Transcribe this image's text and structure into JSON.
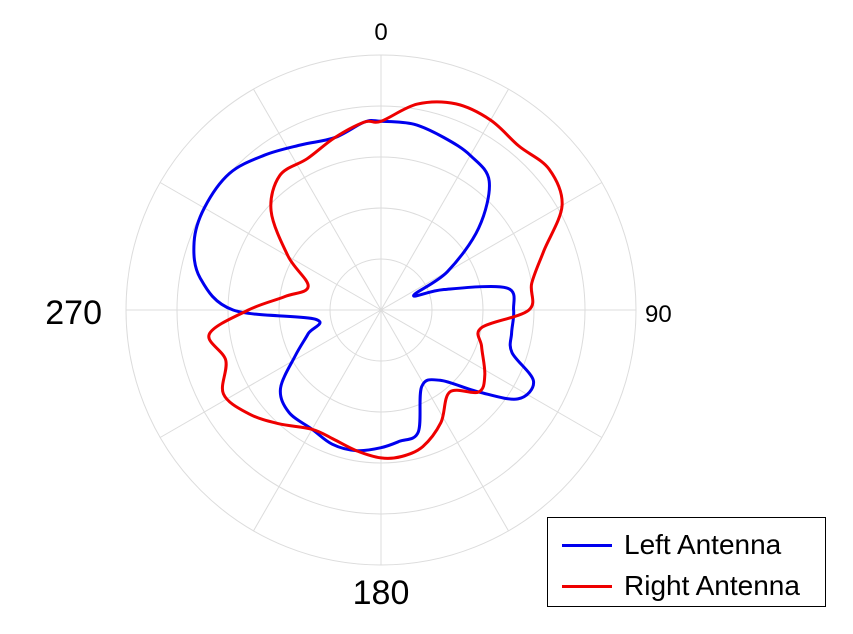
{
  "chart_data": {
    "type": "polar-line",
    "angle_labels": [
      {
        "angle": 0,
        "text": "0"
      },
      {
        "angle": 90,
        "text": "90"
      },
      {
        "angle": 180,
        "text": "180"
      },
      {
        "angle": 270,
        "text": "270"
      }
    ],
    "rings": 5,
    "radial_gridline_step_deg": 30,
    "rmax": 5,
    "grid": true,
    "grid_color": "#dcdcdc",
    "legend_position": "bottom-right",
    "series": [
      {
        "name": "Left Antenna",
        "color": "#0000ee",
        "points": [
          [
            0,
            3.7
          ],
          [
            10,
            3.7
          ],
          [
            20,
            3.6
          ],
          [
            30,
            3.5
          ],
          [
            40,
            3.3
          ],
          [
            50,
            2.5
          ],
          [
            60,
            1.5
          ],
          [
            66,
            0.7
          ],
          [
            72,
            1.3
          ],
          [
            80,
            2.5
          ],
          [
            90,
            2.6
          ],
          [
            100,
            2.6
          ],
          [
            108,
            2.7
          ],
          [
            115,
            3.3
          ],
          [
            123,
            3.2
          ],
          [
            130,
            2.5
          ],
          [
            140,
            1.8
          ],
          [
            152,
            1.7
          ],
          [
            163,
            2.5
          ],
          [
            172,
            2.6
          ],
          [
            180,
            2.7
          ],
          [
            190,
            2.8
          ],
          [
            200,
            2.8
          ],
          [
            210,
            2.7
          ],
          [
            222,
            2.7
          ],
          [
            232,
            2.5
          ],
          [
            242,
            1.9
          ],
          [
            252,
            1.5
          ],
          [
            262,
            1.3
          ],
          [
            270,
            2.9
          ],
          [
            280,
            3.6
          ],
          [
            290,
            3.9
          ],
          [
            300,
            4.0
          ],
          [
            312,
            4.0
          ],
          [
            323,
            3.8
          ],
          [
            334,
            3.6
          ],
          [
            345,
            3.5
          ],
          [
            355,
            3.7
          ]
        ]
      },
      {
        "name": "Right Antenna",
        "color": "#ee0000",
        "points": [
          [
            0,
            3.7
          ],
          [
            10,
            4.1
          ],
          [
            20,
            4.3
          ],
          [
            30,
            4.3
          ],
          [
            40,
            4.2
          ],
          [
            50,
            4.3
          ],
          [
            60,
            4.1
          ],
          [
            70,
            3.4
          ],
          [
            80,
            3.0
          ],
          [
            90,
            2.9
          ],
          [
            100,
            2.0
          ],
          [
            110,
            2.1
          ],
          [
            122,
            2.4
          ],
          [
            130,
            2.5
          ],
          [
            140,
            2.1
          ],
          [
            152,
            2.5
          ],
          [
            163,
            2.8
          ],
          [
            172,
            2.9
          ],
          [
            180,
            2.9
          ],
          [
            190,
            2.8
          ],
          [
            200,
            2.7
          ],
          [
            210,
            2.7
          ],
          [
            222,
            3.0
          ],
          [
            232,
            3.3
          ],
          [
            242,
            3.5
          ],
          [
            252,
            3.2
          ],
          [
            262,
            3.4
          ],
          [
            270,
            2.6
          ],
          [
            278,
            1.9
          ],
          [
            288,
            1.5
          ],
          [
            300,
            2.1
          ],
          [
            312,
            2.9
          ],
          [
            323,
            3.3
          ],
          [
            334,
            3.3
          ],
          [
            345,
            3.5
          ],
          [
            355,
            3.7
          ]
        ]
      }
    ]
  }
}
